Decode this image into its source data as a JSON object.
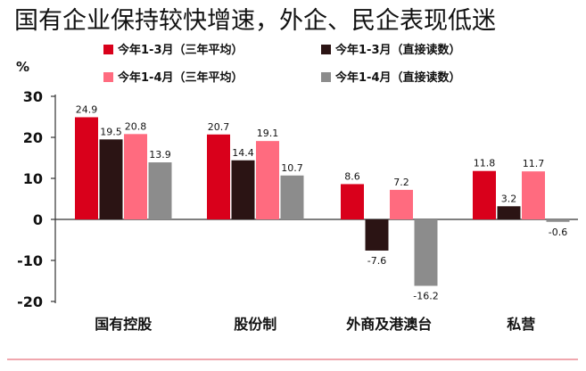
{
  "title": "国有企业保持较快增速，外企、民企表现低迷",
  "chart_data": {
    "type": "bar",
    "ylabel": "%",
    "ylim": [
      -20,
      30
    ],
    "yticks": [
      30,
      20,
      10,
      0,
      -10,
      -20
    ],
    "ytick_labels": [
      "30",
      "20",
      "10",
      "0",
      "-10",
      "-20"
    ],
    "grid": false,
    "legend_position": "top",
    "categories": [
      "国有控股",
      "股份制",
      "外商及港澳台",
      "私营"
    ],
    "series": [
      {
        "name": "今年1-3月（三年平均）",
        "color": "#d9001b",
        "values": [
          24.9,
          20.7,
          8.6,
          11.8
        ],
        "labels": [
          "24.9",
          "20.7",
          "8.6",
          "11.8"
        ]
      },
      {
        "name": "今年1-3月（直接读数）",
        "color": "#2b1414",
        "values": [
          19.5,
          14.4,
          -7.6,
          3.2
        ],
        "labels": [
          "19.5",
          "14.4",
          "-7.6",
          "3.2"
        ]
      },
      {
        "name": "今年1-4月（三年平均）",
        "color": "#ff6b7f",
        "values": [
          20.8,
          19.1,
          7.2,
          11.7
        ],
        "labels": [
          "20.8",
          "19.1",
          "7.2",
          "11.7"
        ]
      },
      {
        "name": "今年1-4月（直接读数）",
        "color": "#8c8c8c",
        "values": [
          13.9,
          10.7,
          -16.2,
          -0.6
        ],
        "labels": [
          "13.9",
          "10.7",
          "-16.2",
          "-0.6"
        ]
      }
    ]
  },
  "colors": {
    "bottom_rule": "#f0a7ae",
    "axis": "#333333",
    "text": "#111111"
  }
}
